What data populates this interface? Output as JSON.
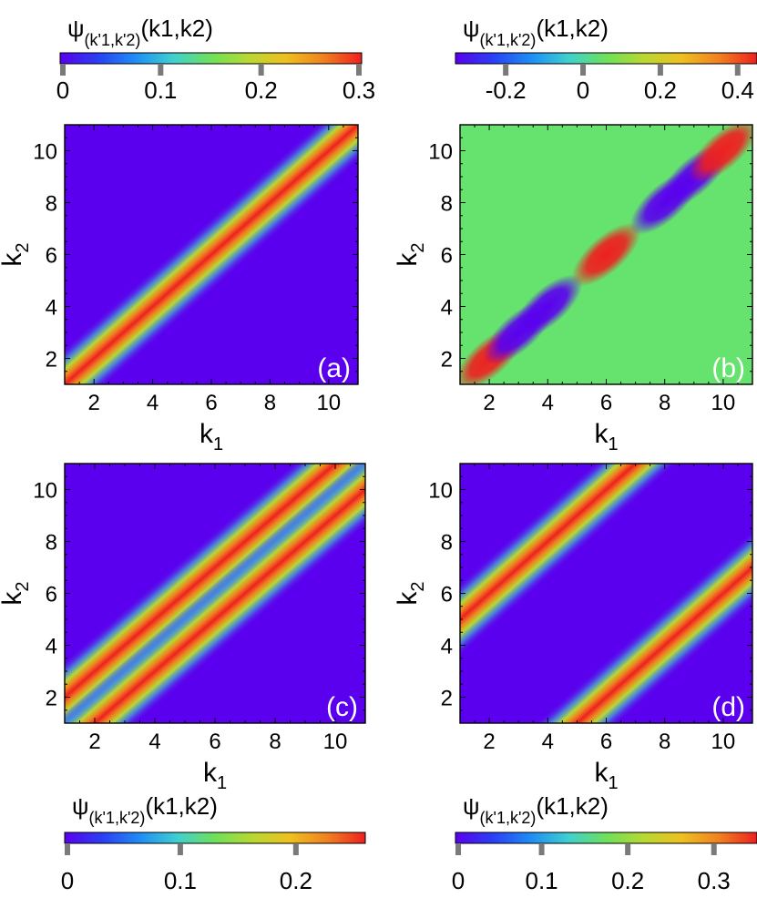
{
  "colorbar_label": {
    "psi": "ψ",
    "sub": "(k'1,k'2)",
    "args": "(k1,k2)"
  },
  "colors": {
    "low": "#5a00ee",
    "zero_b": "#66e36f",
    "high": "#ee2020",
    "frame": "#000000"
  },
  "colormap": [
    "#5a00ee",
    "#2a3ff5",
    "#1f8df5",
    "#3fd0d0",
    "#6ee05a",
    "#b8d832",
    "#eec020",
    "#f08020",
    "#ee2020"
  ],
  "chart_data": [
    {
      "type": "heatmap",
      "panel_label": "(a)",
      "xlabel": "k1",
      "ylabel": "k2",
      "xlim": [
        1,
        11
      ],
      "ylim": [
        1,
        11
      ],
      "xticks": [
        2,
        4,
        6,
        8,
        10
      ],
      "yticks": [
        2,
        4,
        6,
        8,
        10
      ],
      "colorbar": {
        "position": "top",
        "vmin": 0,
        "vmax": 0.3,
        "ticks": [
          "0",
          "0.1",
          "0.2",
          "0.3"
        ],
        "tick_values": [
          0,
          0.1,
          0.2,
          0.3
        ]
      },
      "bands": [
        {
          "offset": 0,
          "peak": 0.3
        }
      ]
    },
    {
      "type": "heatmap",
      "panel_label": "(b)",
      "xlabel": "k1",
      "ylabel": "k2",
      "xlim": [
        1,
        11
      ],
      "ylim": [
        1,
        11
      ],
      "xticks": [
        2,
        4,
        6,
        8,
        10
      ],
      "yticks": [
        2,
        4,
        6,
        8,
        10
      ],
      "colorbar": {
        "position": "top",
        "vmin": -0.33,
        "vmax": 0.45,
        "ticks": [
          "-0.2",
          "0",
          "0.2",
          "0.4"
        ],
        "tick_values": [
          -0.2,
          0,
          0.2,
          0.4
        ]
      },
      "diagonal_values": [
        {
          "k": 2,
          "value": 0.45
        },
        {
          "k": 3,
          "value": -0.33
        },
        {
          "k": 4,
          "value": -0.33
        },
        {
          "k": 6,
          "value": 0.45
        },
        {
          "k": 8,
          "value": -0.33
        },
        {
          "k": 9,
          "value": -0.33
        },
        {
          "k": 10,
          "value": 0.45
        }
      ]
    },
    {
      "type": "heatmap",
      "panel_label": "(c)",
      "xlabel": "k1",
      "ylabel": "k2",
      "xlim": [
        1,
        11
      ],
      "ylim": [
        1,
        11
      ],
      "xticks": [
        2,
        4,
        6,
        8,
        10
      ],
      "yticks": [
        2,
        4,
        6,
        8,
        10
      ],
      "colorbar": {
        "position": "bottom",
        "vmin": 0,
        "vmax": 0.26,
        "ticks": [
          "0",
          "0.1",
          "0.2"
        ],
        "tick_values": [
          0,
          0.1,
          0.2
        ]
      },
      "bands": [
        {
          "offset": 1,
          "peak": 0.26
        },
        {
          "offset": -1,
          "peak": 0.26
        }
      ]
    },
    {
      "type": "heatmap",
      "panel_label": "(d)",
      "xlabel": "k1",
      "ylabel": "k2",
      "xlim": [
        1,
        11
      ],
      "ylim": [
        1,
        11
      ],
      "xticks": [
        2,
        4,
        6,
        8,
        10
      ],
      "yticks": [
        2,
        4,
        6,
        8,
        10
      ],
      "colorbar": {
        "position": "bottom",
        "vmin": 0,
        "vmax": 0.35,
        "ticks": [
          "0",
          "0.1",
          "0.2",
          "0.3"
        ],
        "tick_values": [
          0,
          0.1,
          0.2,
          0.3
        ]
      },
      "bands": [
        {
          "offset": 4,
          "peak": 0.35
        },
        {
          "offset": -4,
          "peak": 0.35
        }
      ]
    }
  ]
}
